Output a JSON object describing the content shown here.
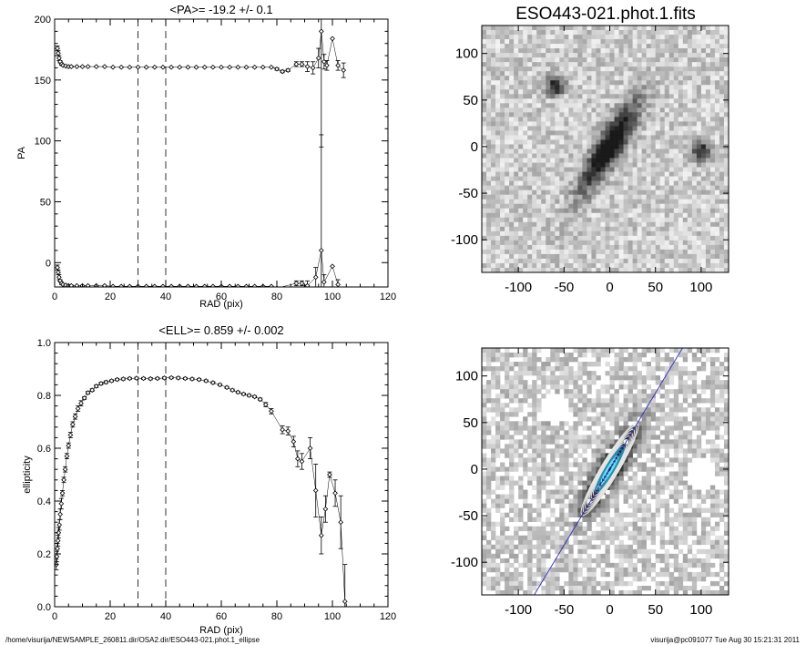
{
  "image_title": "ESO443-021.phot.1.fits",
  "footer": {
    "left": "/home/visurija/NEWSAMPLE_260811.dir/OSA2.dir/ESO443-021.phot.1_ellipse",
    "right": "visurija@pc091077  Tue Aug 30 15:21:31 2011"
  },
  "chart_data": [
    {
      "type": "scatter",
      "title": "<PA>= -19.2 +/-   0.1",
      "xlabel": "RAD (pix)",
      "ylabel": "PA",
      "xlim": [
        0,
        120
      ],
      "ylim": [
        -20,
        200
      ],
      "xticks": [
        0,
        20,
        40,
        60,
        80,
        100,
        120
      ],
      "yticks": [
        0,
        50,
        100,
        150,
        200
      ],
      "ytick_labels": [
        "0",
        "50",
        "100",
        "150",
        "200"
      ],
      "vlines": [
        30,
        40
      ],
      "series": [
        {
          "x": [
            1,
            1.3,
            1.6,
            2,
            2.5,
            3,
            4,
            5,
            6,
            8,
            10,
            12,
            15,
            18,
            21,
            24,
            27,
            30,
            33,
            36,
            39,
            42,
            45,
            48,
            51,
            54,
            57,
            60,
            63,
            66,
            69,
            72,
            75,
            78,
            80,
            82,
            84,
            87,
            89,
            91,
            93,
            95,
            96,
            97,
            98,
            100,
            102,
            104
          ],
          "y": [
            176,
            172,
            168,
            165,
            163,
            162,
            161.5,
            161,
            161,
            161,
            161,
            161,
            161,
            161,
            160.5,
            160.5,
            160.5,
            160.5,
            160.5,
            160.5,
            160.5,
            160.5,
            160.5,
            160.5,
            160.5,
            160.5,
            160.5,
            160.5,
            160.5,
            160.5,
            160.5,
            160.5,
            160.5,
            160.5,
            159,
            157,
            158,
            163,
            163,
            161,
            160,
            168,
            190,
            165,
            162,
            184,
            162,
            158
          ],
          "yerr": [
            2,
            2,
            2,
            1,
            1,
            0.5,
            0.5,
            0.5,
            0.5,
            0.3,
            0.3,
            0.3,
            0.3,
            0.3,
            0.3,
            0.3,
            0.3,
            0.3,
            0.3,
            0.3,
            0.3,
            0.3,
            0.3,
            0.3,
            0.3,
            0.3,
            0.3,
            0.3,
            0.3,
            0.3,
            0.3,
            0.3,
            0.3,
            0.3,
            1,
            1,
            1,
            2,
            2,
            4,
            5,
            8,
            95,
            6,
            4,
            0,
            4,
            6
          ]
        },
        {
          "x": [
            1,
            1.3,
            1.6,
            2,
            2.5,
            3,
            4,
            5,
            6,
            8,
            10,
            12,
            15,
            18,
            21,
            24,
            27,
            30,
            33,
            36,
            39,
            42,
            45,
            48,
            51,
            54,
            57,
            60,
            63,
            66,
            69,
            72,
            75,
            78,
            80,
            87,
            89,
            91,
            94,
            96,
            97,
            100,
            102
          ],
          "y": [
            -4,
            -8,
            -12,
            -15,
            -17,
            -18,
            -18.5,
            -19,
            -19,
            -19,
            -19,
            -19,
            -19,
            -19,
            -19.5,
            -19.5,
            -19.5,
            -19.5,
            -19.5,
            -19.5,
            -19.5,
            -19.5,
            -19.5,
            -19.5,
            -19.5,
            -19.5,
            -19.5,
            -19.5,
            -19.5,
            -19.5,
            -19.5,
            -19.5,
            -19.5,
            -19.5,
            -21,
            -17,
            -17,
            -19,
            -12,
            10,
            -16,
            -3,
            -18
          ],
          "yerr": [
            2,
            2,
            2,
            1,
            1,
            0.5,
            0.5,
            0.5,
            0.5,
            0.3,
            0.3,
            0.3,
            0.3,
            0.3,
            0.3,
            0.3,
            0.3,
            0.3,
            0.3,
            0.3,
            0.3,
            0.3,
            0.3,
            0.3,
            0.3,
            0.3,
            0.3,
            0.3,
            0.3,
            0.3,
            0.3,
            0.3,
            0.3,
            0.3,
            1,
            2,
            2,
            4,
            8,
            95,
            6,
            0,
            4
          ]
        }
      ]
    },
    {
      "type": "scatter",
      "title": "<ELL>= 0.859 +/-  0.002",
      "xlabel": "RAD (pix)",
      "ylabel": "ellipticity",
      "xlim": [
        0,
        120
      ],
      "ylim": [
        0,
        1
      ],
      "xticks": [
        0,
        20,
        40,
        60,
        80,
        100,
        120
      ],
      "yticks": [
        0,
        0.2,
        0.4,
        0.6,
        0.8,
        1.0
      ],
      "ytick_labels": [
        "0.0",
        "0.2",
        "0.4",
        "0.6",
        "0.8",
        "1.0"
      ],
      "vlines": [
        30,
        40
      ],
      "series": [
        {
          "x": [
            0.6,
            0.8,
            1.0,
            1.2,
            1.4,
            1.7,
            2.0,
            2.4,
            2.8,
            3.3,
            3.8,
            4.4,
            5.0,
            5.7,
            6.5,
            7.4,
            8.4,
            9.5,
            10.7,
            12.0,
            13.5,
            15.0,
            16.7,
            18.5,
            20.5,
            22.5,
            24.7,
            27.0,
            29.5,
            32,
            34.5,
            37,
            39.5,
            42,
            44.5,
            47,
            49.5,
            52,
            54.5,
            57,
            59.5,
            62,
            64,
            66,
            68,
            70,
            72,
            74,
            76,
            78,
            82,
            84,
            86,
            87.5,
            89,
            92,
            94,
            96,
            97.5,
            99,
            101,
            103,
            104.5
          ],
          "y": [
            0.16,
            0.19,
            0.22,
            0.25,
            0.28,
            0.31,
            0.35,
            0.39,
            0.43,
            0.48,
            0.52,
            0.57,
            0.61,
            0.65,
            0.69,
            0.72,
            0.75,
            0.77,
            0.79,
            0.81,
            0.82,
            0.835,
            0.845,
            0.85,
            0.855,
            0.86,
            0.862,
            0.864,
            0.865,
            0.864,
            0.863,
            0.864,
            0.866,
            0.867,
            0.866,
            0.864,
            0.862,
            0.86,
            0.855,
            0.848,
            0.84,
            0.83,
            0.82,
            0.812,
            0.805,
            0.8,
            0.795,
            0.785,
            0.765,
            0.74,
            0.67,
            0.665,
            0.625,
            0.56,
            0.55,
            0.6,
            0.44,
            0.27,
            0.37,
            0.5,
            0.43,
            0.32,
            0.02
          ],
          "yerr": [
            0.02,
            0.02,
            0.02,
            0.02,
            0.02,
            0.02,
            0.02,
            0.02,
            0.01,
            0.01,
            0.01,
            0.01,
            0.01,
            0.01,
            0.01,
            0.01,
            0.01,
            0.01,
            0.005,
            0.005,
            0.005,
            0.005,
            0.005,
            0.005,
            0.004,
            0.004,
            0.004,
            0.004,
            0.004,
            0.004,
            0.004,
            0.004,
            0.004,
            0.004,
            0.004,
            0.004,
            0.004,
            0.004,
            0.004,
            0.004,
            0.004,
            0.004,
            0.004,
            0.004,
            0.004,
            0.004,
            0.004,
            0.005,
            0.008,
            0.01,
            0.015,
            0.015,
            0.02,
            0.03,
            0.03,
            0.04,
            0.1,
            0.07,
            0.05,
            0.01,
            0.05,
            0.1,
            0.14
          ]
        }
      ]
    },
    {
      "type": "heatmap",
      "title": "ESO443-021.phot.1.fits",
      "xlim": [
        -140,
        130
      ],
      "ylim": [
        -135,
        130
      ],
      "xticks": [
        -100,
        -50,
        0,
        50,
        100
      ],
      "yticks": [
        -100,
        -50,
        0,
        50,
        100
      ]
    },
    {
      "type": "heatmap",
      "title": "",
      "xlim": [
        -140,
        130
      ],
      "ylim": [
        -135,
        130
      ],
      "xticks": [
        -100,
        -50,
        0,
        50,
        100
      ],
      "yticks": [
        -100,
        -50,
        0,
        50,
        100
      ]
    }
  ]
}
